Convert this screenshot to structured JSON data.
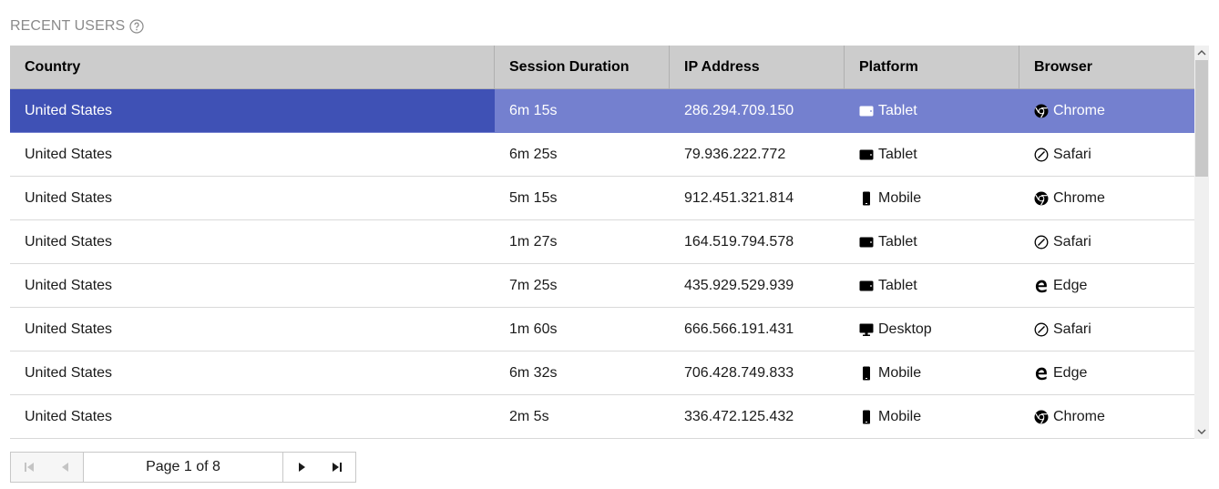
{
  "title": "RECENT USERS",
  "columns": [
    "Country",
    "Session Duration",
    "IP Address",
    "Platform",
    "Browser"
  ],
  "rows": [
    {
      "country": "United States",
      "duration": "6m 15s",
      "ip": "286.294.709.150",
      "platform": "Tablet",
      "platform_icon": "tablet-icon",
      "browser": "Chrome",
      "browser_icon": "chrome-icon",
      "selected": true
    },
    {
      "country": "United States",
      "duration": "6m 25s",
      "ip": "79.936.222.772",
      "platform": "Tablet",
      "platform_icon": "tablet-icon",
      "browser": "Safari",
      "browser_icon": "safari-icon"
    },
    {
      "country": "United States",
      "duration": "5m 15s",
      "ip": "912.451.321.814",
      "platform": "Mobile",
      "platform_icon": "mobile-icon",
      "browser": "Chrome",
      "browser_icon": "chrome-icon"
    },
    {
      "country": "United States",
      "duration": "1m 27s",
      "ip": "164.519.794.578",
      "platform": "Tablet",
      "platform_icon": "tablet-icon",
      "browser": "Safari",
      "browser_icon": "safari-icon"
    },
    {
      "country": "United States",
      "duration": "7m 25s",
      "ip": "435.929.529.939",
      "platform": "Tablet",
      "platform_icon": "tablet-icon",
      "browser": "Edge",
      "browser_icon": "edge-icon"
    },
    {
      "country": "United States",
      "duration": "1m 60s",
      "ip": "666.566.191.431",
      "platform": "Desktop",
      "platform_icon": "desktop-icon",
      "browser": "Safari",
      "browser_icon": "safari-icon"
    },
    {
      "country": "United States",
      "duration": "6m 32s",
      "ip": "706.428.749.833",
      "platform": "Mobile",
      "platform_icon": "mobile-icon",
      "browser": "Edge",
      "browser_icon": "edge-icon"
    },
    {
      "country": "United States",
      "duration": "2m 5s",
      "ip": "336.472.125.432",
      "platform": "Mobile",
      "platform_icon": "mobile-icon",
      "browser": "Chrome",
      "browser_icon": "chrome-icon"
    }
  ],
  "pager": {
    "info": "Page 1 of 8"
  },
  "colors": {
    "selected_first": "#3f51b5",
    "selected_row": "#7480cf",
    "header_bg": "#cccccc"
  }
}
